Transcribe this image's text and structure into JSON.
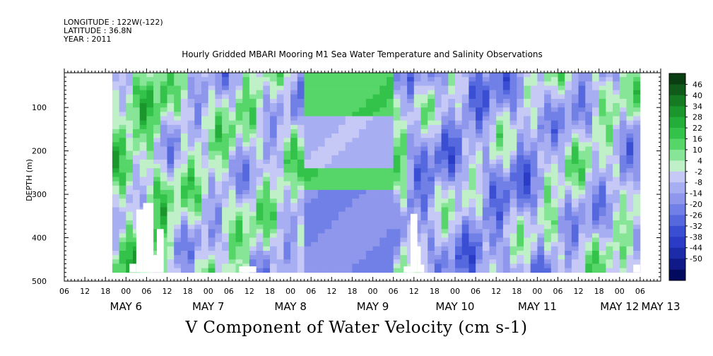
{
  "header": {
    "longitude": "LONGITUDE : 122W(-122)",
    "latitude": "LATITUDE : 36.8N",
    "year": "YEAR : 2011"
  },
  "chart_data": {
    "type": "heatmap",
    "title": "Hourly Gridded MBARI Mooring M1 Sea Water Temperature and Salinity Observations",
    "variable_label": "V Component of Water Velocity (cm s-1)",
    "ylabel": "DEPTH (m)",
    "ylim": [
      500,
      20
    ],
    "y_ticks": [
      100,
      200,
      300,
      400,
      500
    ],
    "x_start_hour": 6,
    "x_hours_total": 174,
    "x_data_hours": [
      14,
      168
    ],
    "x_tick_labels": [
      "06",
      "12",
      "18",
      "00",
      "06",
      "12",
      "18",
      "00",
      "06",
      "12",
      "18",
      "00",
      "06",
      "12",
      "18",
      "00",
      "06",
      "12",
      "18",
      "00",
      "06",
      "12",
      "18",
      "00",
      "06",
      "12",
      "18",
      "00",
      "06"
    ],
    "day_labels": [
      "MAY  6",
      "MAY  7",
      "MAY  8",
      "MAY  9",
      "MAY 10",
      "MAY 11",
      "MAY 12",
      "MAY 13"
    ],
    "colorbar_labels": [
      "46",
      "40",
      "34",
      "28",
      "22",
      "16",
      "10",
      "4",
      "-2",
      "-8",
      "-14",
      "-20",
      "-26",
      "-32",
      "-38",
      "-44",
      "-50"
    ],
    "colorbar_colors": [
      "#0a3d12",
      "#105a1a",
      "#167a22",
      "#1a962c",
      "#22ae38",
      "#33c24a",
      "#56d668",
      "#86e596",
      "#c0f0c8",
      "#c6c8f6",
      "#a8aef2",
      "#8e97ec",
      "#7180e6",
      "#5568de",
      "#3a4ed4",
      "#2a3cc6",
      "#1c2ca8",
      "#0f1a88",
      "#020a60"
    ],
    "white_gaps": [
      {
        "x": [
          19,
          21
        ],
        "depth": [
          460,
          480
        ]
      },
      {
        "x": [
          21,
          23
        ],
        "depth": [
          335,
          480
        ]
      },
      {
        "x": [
          23,
          26
        ],
        "depth": [
          320,
          480
        ]
      },
      {
        "x": [
          25,
          27
        ],
        "depth": [
          440,
          480
        ]
      },
      {
        "x": [
          27,
          29
        ],
        "depth": [
          380,
          480
        ]
      },
      {
        "x": [
          51,
          56
        ],
        "depth": [
          466,
          480
        ]
      },
      {
        "x": [
          99,
          101
        ],
        "depth": [
          466,
          480
        ]
      },
      {
        "x": [
          101,
          103
        ],
        "depth": [
          345,
          480
        ]
      },
      {
        "x": [
          103,
          104
        ],
        "depth": [
          420,
          480
        ]
      },
      {
        "x": [
          104,
          105
        ],
        "depth": [
          462,
          480
        ]
      },
      {
        "x": [
          166,
          168
        ],
        "depth": [
          462,
          480
        ]
      }
    ]
  }
}
